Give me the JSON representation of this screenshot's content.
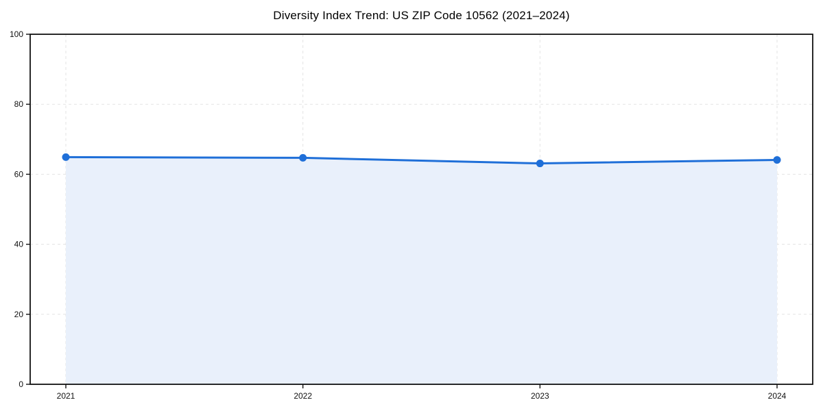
{
  "chart_data": {
    "type": "line",
    "title": "Diversity Index Trend: US ZIP Code 10562 (2021–2024)",
    "categories": [
      "2021",
      "2022",
      "2023",
      "2024"
    ],
    "series": [
      {
        "name": "Diversity Index",
        "values": [
          64.9,
          64.7,
          63.1,
          64.1
        ]
      }
    ],
    "xlabel": "",
    "ylabel": "",
    "ylim": [
      0,
      100
    ],
    "yticks": [
      0,
      20,
      40,
      60,
      80,
      100
    ],
    "grid": true,
    "grid_style": "dashed",
    "legend_position": "none",
    "area_fill": true,
    "marker": "circle",
    "colors": {
      "line": "#1f6fd8",
      "marker": "#1f6fd8",
      "area": "#e9f0fb",
      "grid": "#e3e3e3",
      "spine": "#111111",
      "text": "#111111",
      "background": "#ffffff"
    }
  }
}
